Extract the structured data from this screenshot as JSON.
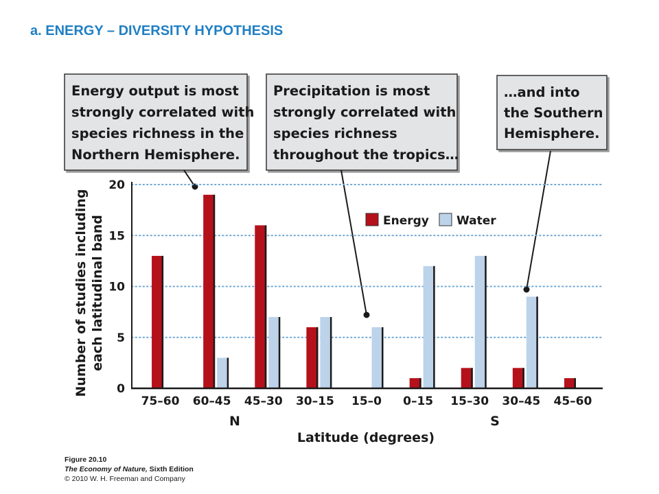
{
  "slide_title": "a. ENERGY – DIVERSITY HYPOTHESIS",
  "callouts": [
    {
      "lines": [
        "Energy output is most",
        "strongly correlated with",
        "species richness in the",
        "Northern Hemisphere."
      ]
    },
    {
      "lines": [
        "Precipitation is most",
        "strongly correlated with",
        "species richness",
        "throughout the tropics…"
      ]
    },
    {
      "lines": [
        "…and into",
        "the Southern",
        "Hemisphere."
      ]
    }
  ],
  "credit": {
    "figure": "Figure 20.10",
    "book": "The Economy of Nature,",
    "edition": " Sixth Edition",
    "copyright": "© 2010 W. H. Freeman and Company"
  },
  "chart_data": {
    "type": "bar",
    "categories": [
      "75–60",
      "60–45",
      "45–30",
      "30–15",
      "15–0",
      "0–15",
      "15–30",
      "30–45",
      "45–60"
    ],
    "series": [
      {
        "name": "Energy",
        "color": "#b5111b",
        "values": [
          13,
          19,
          16,
          6,
          0,
          1,
          2,
          2,
          1
        ]
      },
      {
        "name": "Water",
        "color": "#bcd3ea",
        "values": [
          0,
          3,
          7,
          7,
          6,
          12,
          13,
          9,
          0
        ]
      }
    ],
    "ylabel_lines": [
      "Number of studies including",
      "each latitudinal band"
    ],
    "xlabel": "Latitude (degrees)",
    "hemisphere_labels": [
      "N",
      "S"
    ],
    "yticks": [
      0,
      5,
      10,
      15,
      20
    ],
    "ylim": [
      0,
      20
    ],
    "grid": true,
    "legend": "top-right"
  }
}
